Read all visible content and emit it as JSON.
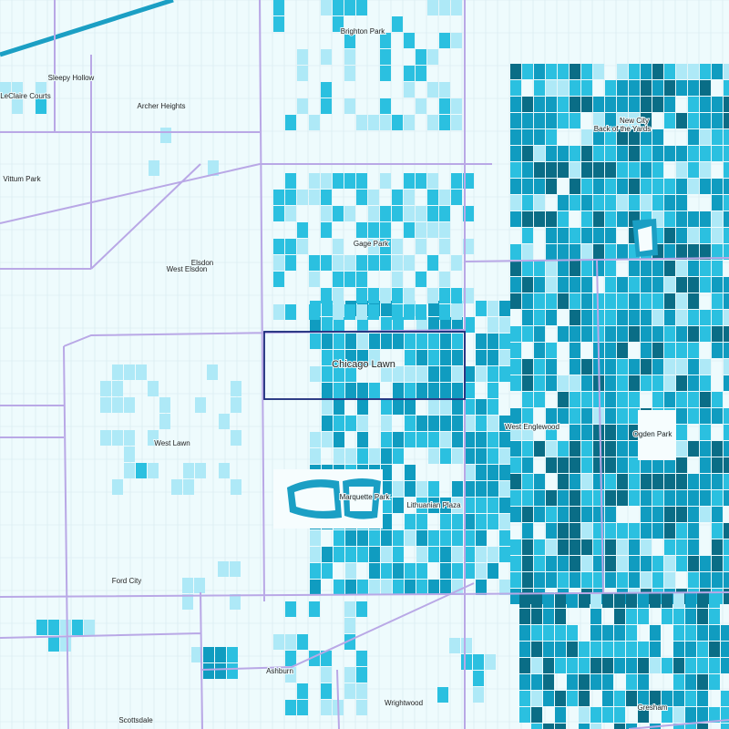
{
  "map": {
    "labels": [
      "Brighton Park",
      "Sleepy Hollow",
      "LeClaire Courts",
      "Archer Heights",
      "New City",
      "Back of the Yards",
      "Vittum Park",
      "Gage Park",
      "Elsdon",
      "West Elsdon",
      "Chicago Lawn",
      "West Englewood",
      "Ogden Park",
      "West Lawn",
      "Marquette Park",
      "Lithuanian Plaza",
      "Ford City",
      "Ashburn",
      "Wrightwood",
      "Scottsdale",
      "Gresham"
    ]
  }
}
